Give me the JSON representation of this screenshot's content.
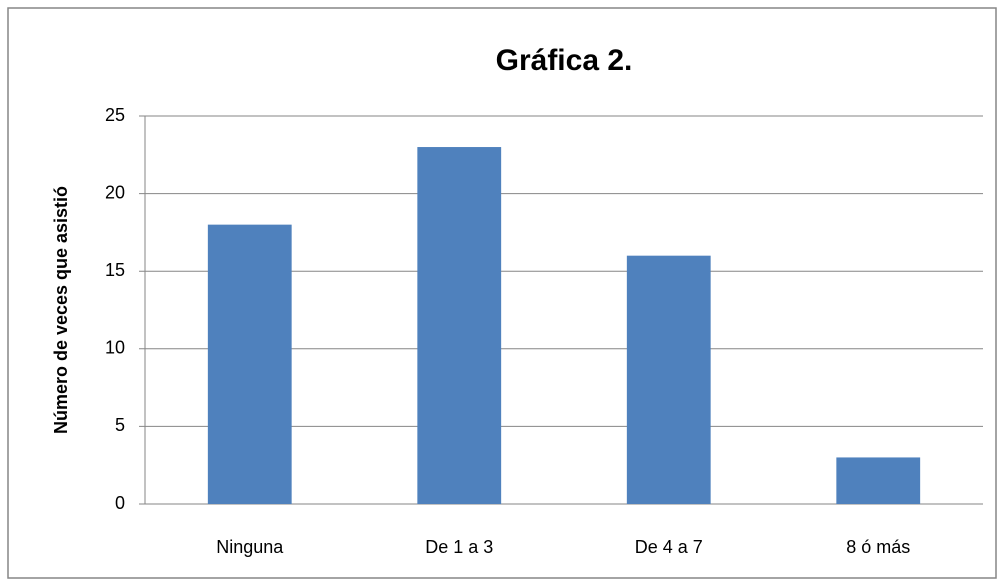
{
  "chart_data": {
    "type": "bar",
    "title": "Gráfica 2.",
    "y_label": "Número de veces que asistió",
    "categories": [
      "Ninguna",
      "De 1 a 3",
      "De 4 a 7",
      "8 ó más"
    ],
    "values": [
      18,
      23,
      16,
      3
    ],
    "color": "#4f81bd",
    "ylim": [
      0,
      25
    ],
    "yticks": [
      0,
      5,
      10,
      15,
      20,
      25
    ],
    "grid": true
  }
}
